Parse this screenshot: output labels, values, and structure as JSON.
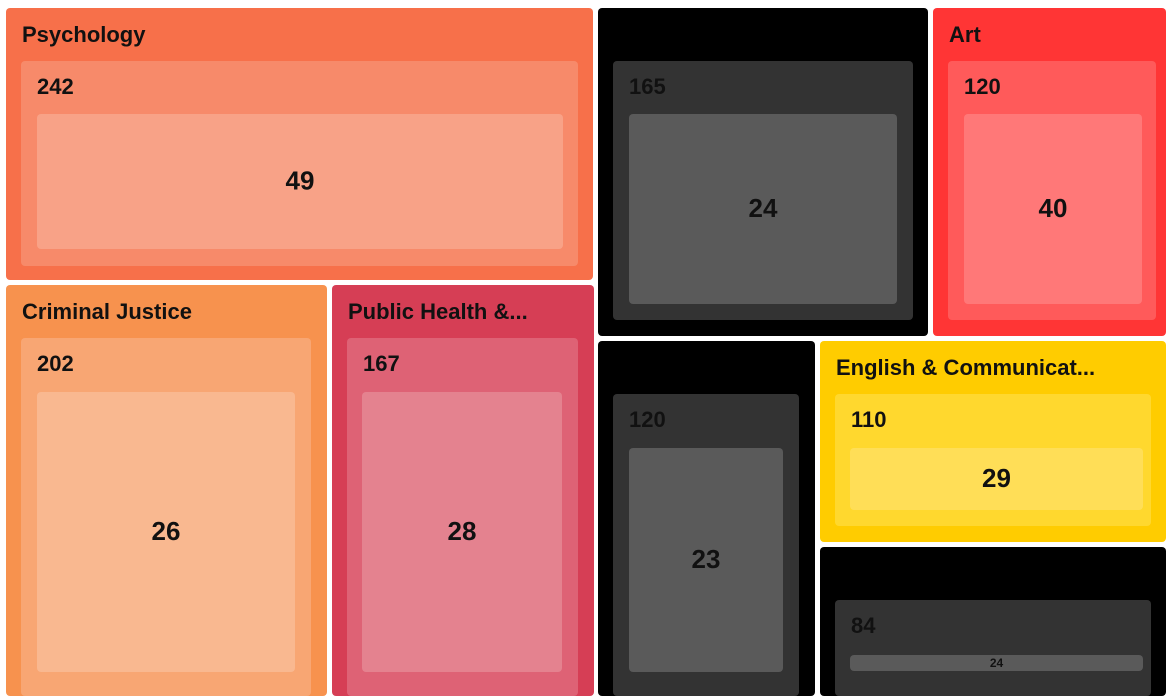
{
  "chart_data": {
    "type": "treemap",
    "items": [
      {
        "name": "Psychology",
        "value": 242,
        "child_value": 49,
        "colors": [
          "#f7704a",
          "#f78a6a",
          "#f8a287"
        ]
      },
      {
        "name": null,
        "value": 165,
        "child_value": 24,
        "colors": [
          "#000000",
          "#333333",
          "#5a5a5a"
        ]
      },
      {
        "name": "Art",
        "value": 120,
        "child_value": 40,
        "colors": [
          "#ff3535",
          "#ff5a5a",
          "#ff7878"
        ]
      },
      {
        "name": "Criminal Justice",
        "value": 202,
        "child_value": 26,
        "colors": [
          "#f7924e",
          "#f8a673",
          "#f9b890"
        ]
      },
      {
        "name": "Public Health &...",
        "value": 167,
        "child_value": 28,
        "colors": [
          "#d63e55",
          "#de6275",
          "#e4828f"
        ]
      },
      {
        "name": null,
        "value": 120,
        "child_value": 23,
        "colors": [
          "#000000",
          "#333333",
          "#5a5a5a"
        ]
      },
      {
        "name": "English & Communicat...",
        "value": 110,
        "child_value": 29,
        "colors": [
          "#ffcc00",
          "#ffd82e",
          "#ffde57"
        ]
      },
      {
        "name": null,
        "value": 84,
        "child_value": 24,
        "colors": [
          "#000000",
          "#333333",
          "#5a5a5a"
        ]
      }
    ]
  }
}
